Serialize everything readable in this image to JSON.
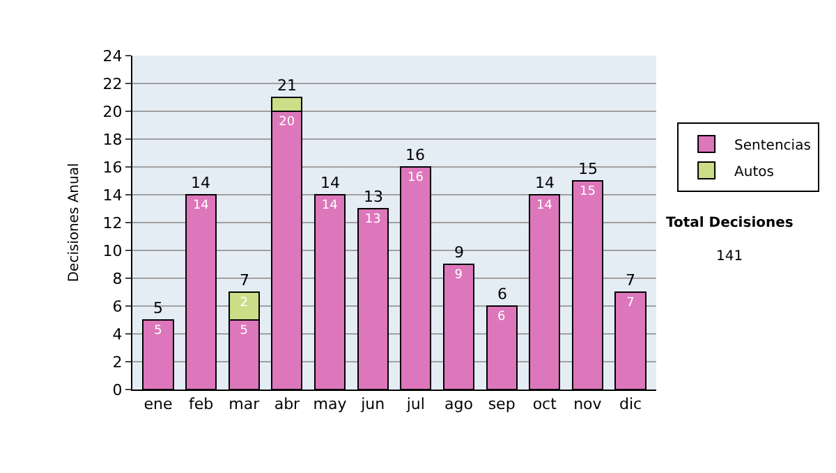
{
  "chart_data": {
    "type": "bar",
    "stacked": true,
    "ylabel": "Decisiones Anual",
    "categories": [
      "ene",
      "feb",
      "mar",
      "abr",
      "may",
      "jun",
      "jul",
      "ago",
      "sep",
      "oct",
      "nov",
      "dic"
    ],
    "series": [
      {
        "name": "Sentencias",
        "color": "#dd77bb",
        "values": [
          5,
          14,
          5,
          20,
          14,
          13,
          16,
          9,
          6,
          14,
          15,
          7
        ],
        "value_labels": [
          "5",
          "14",
          "5",
          "20",
          "14",
          "13",
          "16",
          "9",
          "6",
          "14",
          "15",
          "7"
        ]
      },
      {
        "name": "Autos",
        "color": "#ccdd88",
        "values": [
          null,
          null,
          2,
          1,
          null,
          null,
          null,
          null,
          null,
          null,
          null,
          null
        ],
        "value_labels": [
          null,
          null,
          "2",
          null,
          null,
          null,
          null,
          null,
          null,
          null,
          null,
          null
        ]
      }
    ],
    "totals": [
      "5",
      "14",
      "7",
      "21",
      "14",
      "13",
      "16",
      "9",
      "6",
      "14",
      "15",
      "7"
    ],
    "ylim": [
      0,
      24
    ],
    "yticks": [
      0,
      2,
      4,
      6,
      8,
      10,
      12,
      14,
      16,
      18,
      20,
      22,
      24
    ],
    "grid": "y",
    "legend": "right",
    "annotations": [
      "Total Decisiones",
      "141"
    ]
  }
}
